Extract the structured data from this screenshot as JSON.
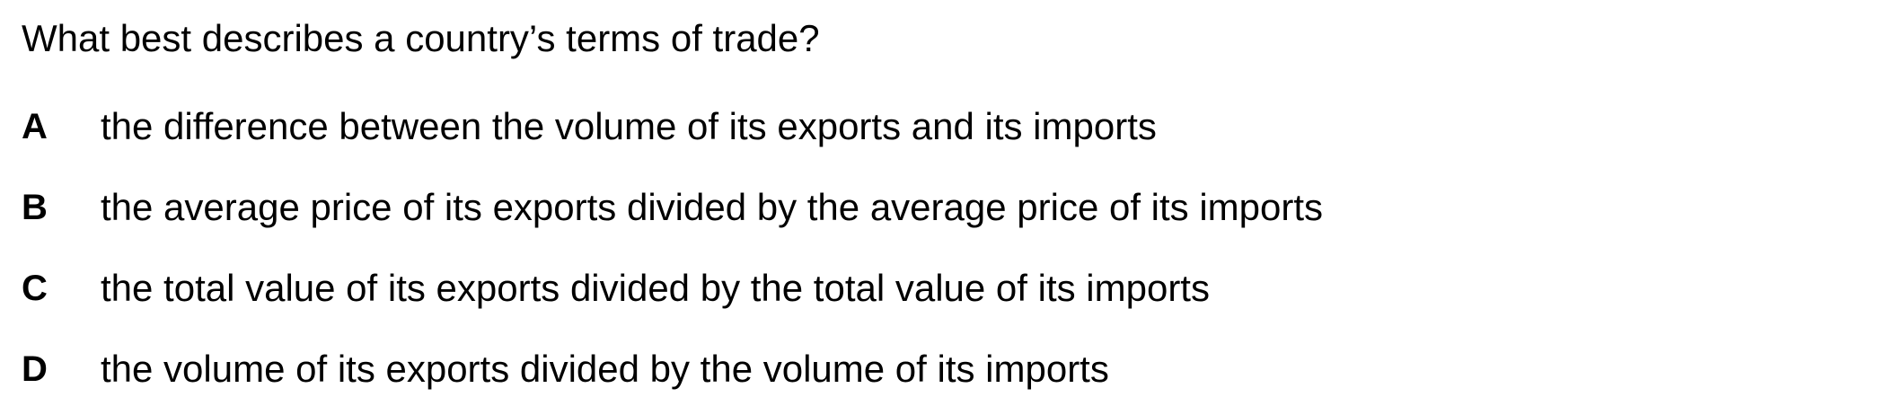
{
  "question": {
    "text": "What best describes a country’s terms of trade?"
  },
  "options": [
    {
      "letter": "A",
      "text": "the difference between the volume of its exports and its imports"
    },
    {
      "letter": "B",
      "text": "the average price of its exports divided by the average price of its imports"
    },
    {
      "letter": "C",
      "text": "the total value of its exports divided by the total value of its imports"
    },
    {
      "letter": "D",
      "text": "the volume of its exports divided by the volume of its imports"
    }
  ]
}
